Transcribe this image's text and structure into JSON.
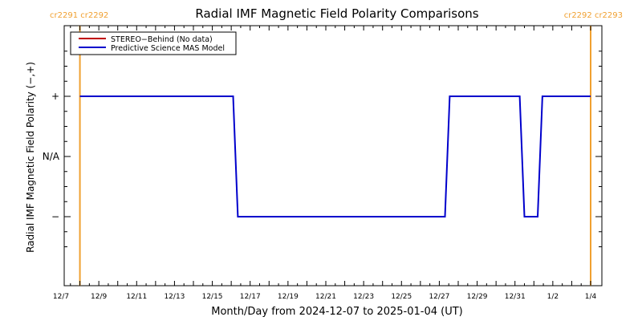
{
  "chart_data": {
    "type": "line",
    "title": "Radial IMF Magnetic Field Polarity Comparisons",
    "xlabel": "Month/Day from 2024-12-07 to 2025-01-04 (UT)",
    "ylabel": "Radial IMF Magnetic Field Polarity (−,+)",
    "x_range_days": [
      0,
      28
    ],
    "ylim": [
      -2,
      2
    ],
    "x_ticks": [
      {
        "day": 0,
        "label": "12/7"
      },
      {
        "day": 2,
        "label": "12/9"
      },
      {
        "day": 4,
        "label": "12/11"
      },
      {
        "day": 6,
        "label": "12/13"
      },
      {
        "day": 8,
        "label": "12/15"
      },
      {
        "day": 10,
        "label": "12/17"
      },
      {
        "day": 12,
        "label": "12/19"
      },
      {
        "day": 14,
        "label": "12/21"
      },
      {
        "day": 16,
        "label": "12/23"
      },
      {
        "day": 18,
        "label": "12/25"
      },
      {
        "day": 20,
        "label": "12/27"
      },
      {
        "day": 22,
        "label": "12/29"
      },
      {
        "day": 24,
        "label": "12/31"
      },
      {
        "day": 26,
        "label": "1/2"
      },
      {
        "day": 28,
        "label": "1/4"
      }
    ],
    "y_ticks": [
      {
        "value": 1,
        "label": "+"
      },
      {
        "value": 0,
        "label": "N/A"
      },
      {
        "value": -1,
        "label": "−"
      }
    ],
    "rotation_markers": [
      {
        "day": 1.0,
        "label": "cr2291 cr2292"
      },
      {
        "day": 28.0,
        "label": "cr2292 cr2293"
      }
    ],
    "legend_position": "top-left",
    "series": [
      {
        "name": "STEREO−Behind (No data)",
        "color": "#c00000",
        "x": [],
        "y": []
      },
      {
        "name": "Predictive Science MAS Model",
        "color": "#0000cc",
        "x": [
          1.0,
          9.1,
          9.35,
          20.3,
          20.55,
          24.25,
          24.5,
          25.2,
          25.45,
          28.0
        ],
        "y": [
          1,
          1,
          -1,
          -1,
          1,
          1,
          -1,
          -1,
          1,
          1
        ]
      }
    ],
    "marker_color": "#f0a030"
  }
}
